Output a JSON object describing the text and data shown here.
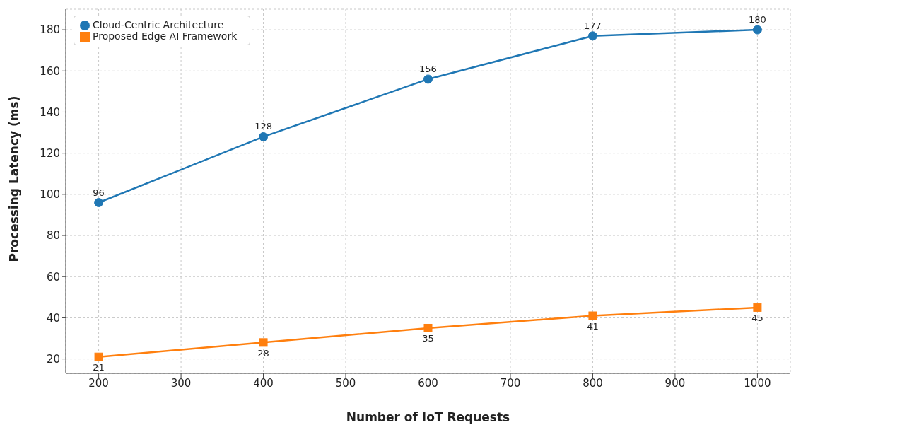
{
  "chart_data": {
    "type": "line",
    "xlabel": "Number of IoT Requests",
    "ylabel": "Processing Latency (ms)",
    "x": [
      200,
      400,
      600,
      800,
      1000
    ],
    "series": [
      {
        "name": "Cloud-Centric Architecture",
        "color": "#1f77b4",
        "marker": "circle",
        "values": [
          96,
          128,
          156,
          177,
          180
        ]
      },
      {
        "name": "Proposed Edge AI Framework",
        "color": "#ff7f0e",
        "marker": "square",
        "values": [
          21,
          28,
          35,
          41,
          45
        ]
      }
    ],
    "xlim": [
      160,
      1040
    ],
    "xticks": [
      200,
      300,
      400,
      500,
      600,
      700,
      800,
      900,
      1000
    ],
    "ylim": [
      13,
      190
    ],
    "yticks": [
      20,
      40,
      60,
      80,
      100,
      120,
      140,
      160,
      180
    ],
    "grid": true,
    "legend": "top left",
    "data_labels": true,
    "line_style": "solid"
  }
}
